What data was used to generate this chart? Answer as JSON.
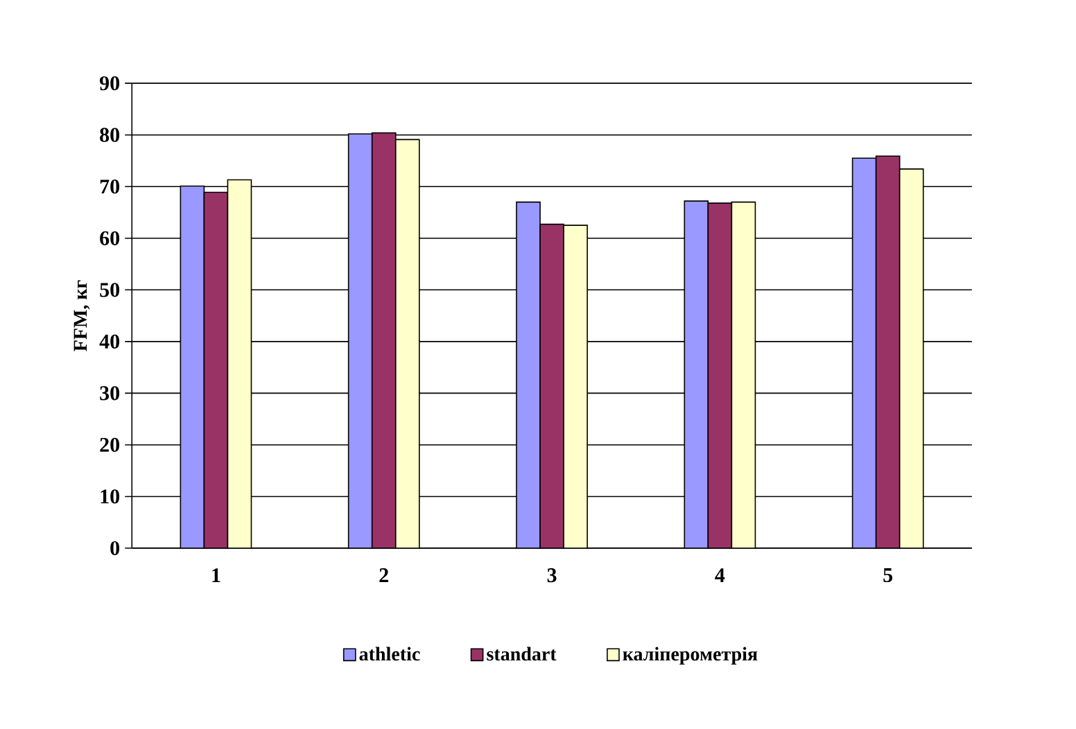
{
  "chart_data": {
    "type": "bar",
    "ylabel": "FFM, кг",
    "categories": [
      "1",
      "2",
      "3",
      "4",
      "5"
    ],
    "series": [
      {
        "name": "athletic",
        "color": "#9999ff",
        "values": [
          70.1,
          80.2,
          67.0,
          67.2,
          75.5
        ]
      },
      {
        "name": "standart",
        "color": "#993366",
        "values": [
          68.9,
          80.4,
          62.7,
          66.8,
          75.9
        ]
      },
      {
        "name": "каліперометрія",
        "color": "#ffffcc",
        "values": [
          71.3,
          79.1,
          62.5,
          67.0,
          73.4
        ]
      }
    ],
    "ylim": [
      0,
      90
    ],
    "yticks": [
      0,
      10,
      20,
      30,
      40,
      50,
      60,
      70,
      80,
      90
    ],
    "grid": "y",
    "legend": "bottom"
  }
}
